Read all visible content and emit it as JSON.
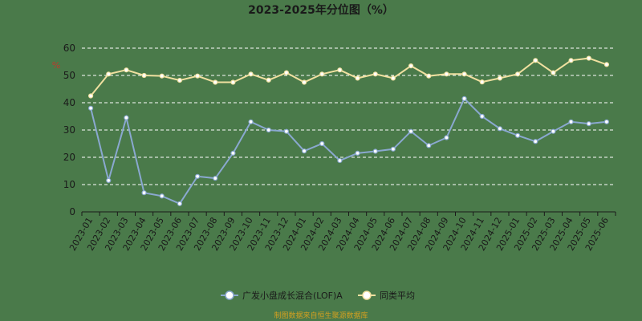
{
  "chart_data": {
    "type": "line",
    "title": "2023-2025年分位图（%）",
    "ylabel": "%",
    "ylim": [
      0,
      60
    ],
    "yticks": [
      0,
      10,
      20,
      30,
      40,
      50,
      60
    ],
    "grid": true,
    "legend_position": "bottom",
    "categories": [
      "2023-01",
      "2023-02",
      "2023-03",
      "2023-04",
      "2023-05",
      "2023-06",
      "2023-07",
      "2023-08",
      "2023-09",
      "2023-10",
      "2023-11",
      "2023-12",
      "2024-01",
      "2024-02",
      "2024-03",
      "2024-04",
      "2024-05",
      "2024-06",
      "2024-07",
      "2024-08",
      "2024-09",
      "2024-10",
      "2024-11",
      "2024-12",
      "2025-01",
      "2025-02",
      "2025-03",
      "2025-04",
      "2025-05",
      "2025-06"
    ],
    "series": [
      {
        "name": "广发小盘成长混合(LOF)A",
        "color": "#8aa8d0",
        "values": [
          38,
          11.5,
          34.5,
          7,
          5.8,
          3,
          13,
          12.3,
          21.5,
          33,
          30,
          29.5,
          22.3,
          25,
          18.8,
          21.5,
          22.2,
          23,
          29.5,
          24.3,
          27.2,
          41.5,
          35,
          30.5,
          28,
          25.8,
          29.5,
          33,
          32.3,
          33
        ]
      },
      {
        "name": "同类平均",
        "color": "#f0e0a0",
        "values": [
          42.5,
          50.5,
          52,
          50,
          49.8,
          48.2,
          49.8,
          47.5,
          47.5,
          50.5,
          48.3,
          51,
          47.5,
          50.5,
          52,
          49,
          50.5,
          49,
          53.5,
          49.8,
          50.5,
          50.5,
          47.6,
          49,
          50.5,
          55.5,
          51,
          55.5,
          56.3,
          54
        ]
      }
    ]
  },
  "source_text": "制图数据来自恒生聚源数据库"
}
